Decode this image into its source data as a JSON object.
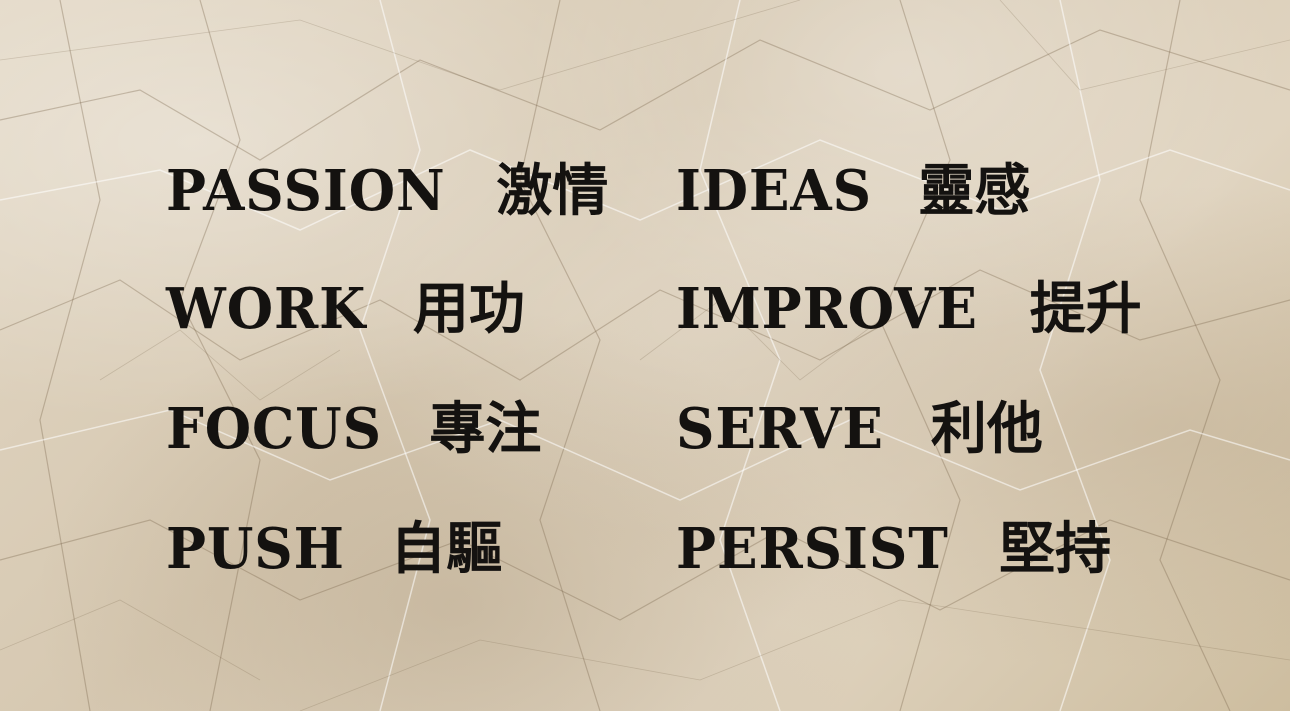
{
  "words": {
    "left": [
      {
        "en": "PASSION",
        "zh": "激情"
      },
      {
        "en": "WORK",
        "zh": "用功"
      },
      {
        "en": "FOCUS",
        "zh": "專注"
      },
      {
        "en": "PUSH",
        "zh": "自驅"
      }
    ],
    "right": [
      {
        "en": "IDEAS",
        "zh": "靈感"
      },
      {
        "en": "IMPROVE",
        "zh": "提升"
      },
      {
        "en": "SERVE",
        "zh": "利他"
      },
      {
        "en": "PERSIST",
        "zh": "堅持"
      }
    ]
  },
  "colors": {
    "paper": "#ddd1bd",
    "text": "#141210"
  }
}
